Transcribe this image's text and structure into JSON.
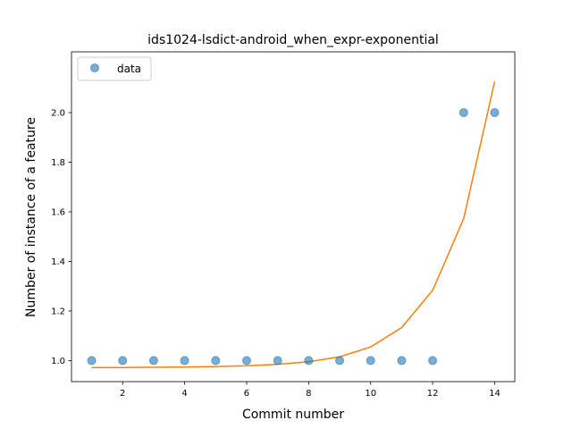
{
  "chart_data": {
    "type": "scatter",
    "title": "ids1024-lsdict-android_when_expr-exponential",
    "xlabel": "Commit number",
    "ylabel": "Number of instance of a feature",
    "xlim": [
      0.35,
      14.65
    ],
    "ylim": [
      0.915,
      2.245
    ],
    "xticks": [
      2,
      4,
      6,
      8,
      10,
      12,
      14
    ],
    "yticks": [
      1.0,
      1.2,
      1.4,
      1.6,
      1.8,
      2.0
    ],
    "grid": false,
    "legend_position": "top-left",
    "series": [
      {
        "name": "data",
        "kind": "scatter",
        "color": "#1f77b4",
        "x": [
          1,
          2,
          3,
          4,
          5,
          6,
          7,
          8,
          9,
          10,
          11,
          12,
          13,
          14
        ],
        "y": [
          1,
          1,
          1,
          1,
          1,
          1,
          1,
          1,
          1,
          1,
          1,
          1,
          2,
          2
        ]
      },
      {
        "kind": "line",
        "color": "#ff7f0e",
        "x": [
          1,
          2,
          3,
          4,
          5,
          6,
          7,
          8,
          9,
          10,
          11,
          12,
          13,
          14
        ],
        "y": [
          0.972,
          0.972,
          0.973,
          0.974,
          0.976,
          0.979,
          0.985,
          0.995,
          1.015,
          1.055,
          1.133,
          1.283,
          1.572,
          2.125
        ]
      }
    ]
  }
}
